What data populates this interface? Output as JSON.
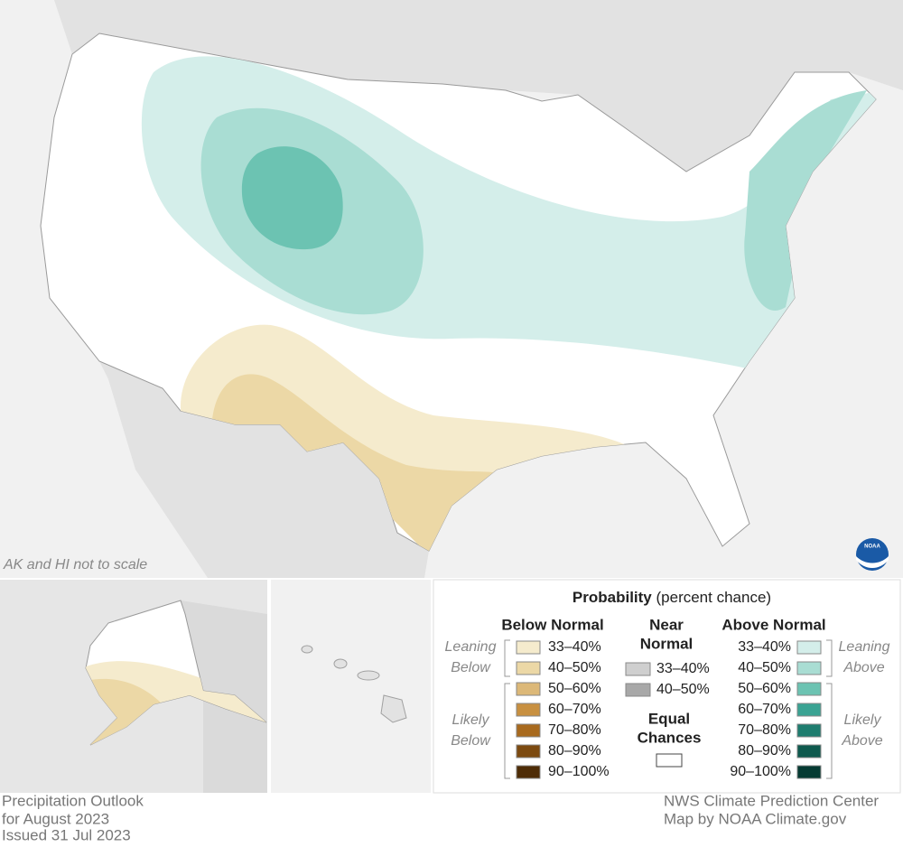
{
  "map": {
    "note": "AK and HI not to scale",
    "logo": "NOAA"
  },
  "legend": {
    "title": "Probability",
    "subtitle": "(percent chance)",
    "below": {
      "heading": "Below Normal",
      "leaning": [
        "Leaning",
        "Below"
      ],
      "likely": [
        "Likely",
        "Below"
      ],
      "items": [
        {
          "label": "33–40%",
          "color": "#f5ebcd"
        },
        {
          "label": "40–50%",
          "color": "#ecd8a6"
        },
        {
          "label": "50–60%",
          "color": "#dcb878"
        },
        {
          "label": "60–70%",
          "color": "#c89040"
        },
        {
          "label": "70–80%",
          "color": "#a86a1e"
        },
        {
          "label": "80–90%",
          "color": "#7c4a10"
        },
        {
          "label": "90–100%",
          "color": "#4e2c06"
        }
      ]
    },
    "near": {
      "heading": [
        "Near",
        "Normal"
      ],
      "items": [
        {
          "label": "33–40%",
          "color": "#cfcfcf"
        },
        {
          "label": "40–50%",
          "color": "#a8a8a8"
        }
      ],
      "equal": [
        "Equal",
        "Chances"
      ]
    },
    "above": {
      "heading": "Above Normal",
      "leaning": [
        "Leaning",
        "Above"
      ],
      "likely": [
        "Likely",
        "Above"
      ],
      "items": [
        {
          "label": "33–40%",
          "color": "#d4eeea"
        },
        {
          "label": "40–50%",
          "color": "#a9ddd3"
        },
        {
          "label": "50–60%",
          "color": "#6cc3b2"
        },
        {
          "label": "60–70%",
          "color": "#3aa393"
        },
        {
          "label": "70–80%",
          "color": "#1e7d6f"
        },
        {
          "label": "80–90%",
          "color": "#0e5a4e"
        },
        {
          "label": "90–100%",
          "color": "#053a32"
        }
      ]
    }
  },
  "footer": {
    "left": [
      "Precipitation Outlook",
      "for August 2023",
      "Issued 31 Jul 2023"
    ],
    "right": [
      "NWS Climate Prediction Center",
      "Map by NOAA Climate.gov"
    ]
  }
}
